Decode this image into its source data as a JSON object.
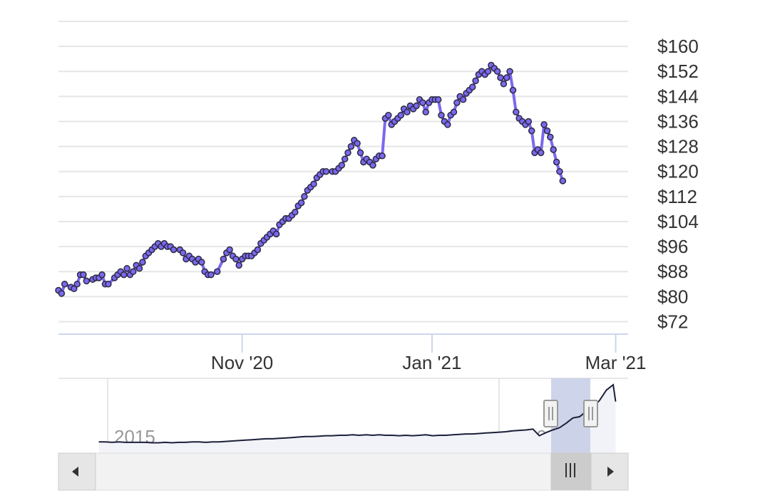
{
  "chart_data": {
    "type": "line",
    "title": "",
    "xlabel": "",
    "ylabel": "",
    "ylim": [
      68,
      168
    ],
    "y_ticks": [
      "$160",
      "$152",
      "$144",
      "$136",
      "$128",
      "$120",
      "$112",
      "$104",
      "$96",
      "$88",
      "$80",
      "$72"
    ],
    "y_tick_values": [
      160,
      152,
      144,
      136,
      128,
      120,
      112,
      104,
      96,
      88,
      80,
      72
    ],
    "x_ticks": [
      {
        "label": "Nov '20",
        "date": "2020-11-01"
      },
      {
        "label": "Jan '21",
        "date": "2021-01-01"
      },
      {
        "label": "Mar '21",
        "date": "2021-03-01"
      }
    ],
    "xlim": [
      "2020-09-03",
      "2021-03-05"
    ],
    "grid": true,
    "legend": "none",
    "series": [
      {
        "color": "#7b68ee",
        "marker_color": "#2a2a40",
        "points": [
          [
            "2020-09-03",
            82
          ],
          [
            "2020-09-04",
            81
          ],
          [
            "2020-09-05",
            84
          ],
          [
            "2020-09-07",
            83
          ],
          [
            "2020-09-08",
            82.5
          ],
          [
            "2020-09-09",
            84
          ],
          [
            "2020-09-10",
            87
          ],
          [
            "2020-09-11",
            87
          ],
          [
            "2020-09-12",
            85
          ],
          [
            "2020-09-14",
            85.5
          ],
          [
            "2020-09-15",
            86
          ],
          [
            "2020-09-16",
            86
          ],
          [
            "2020-09-17",
            87
          ],
          [
            "2020-09-18",
            84
          ],
          [
            "2020-09-19",
            84
          ],
          [
            "2020-09-21",
            86
          ],
          [
            "2020-09-22",
            87
          ],
          [
            "2020-09-23",
            88
          ],
          [
            "2020-09-24",
            87
          ],
          [
            "2020-09-25",
            89
          ],
          [
            "2020-09-26",
            87
          ],
          [
            "2020-09-27",
            88
          ],
          [
            "2020-09-28",
            90
          ],
          [
            "2020-09-29",
            89
          ],
          [
            "2020-09-30",
            91
          ],
          [
            "2020-10-01",
            93
          ],
          [
            "2020-10-02",
            94
          ],
          [
            "2020-10-03",
            95
          ],
          [
            "2020-10-04",
            96
          ],
          [
            "2020-10-05",
            97
          ],
          [
            "2020-10-06",
            96
          ],
          [
            "2020-10-07",
            97
          ],
          [
            "2020-10-08",
            96
          ],
          [
            "2020-10-09",
            96
          ],
          [
            "2020-10-10",
            95
          ],
          [
            "2020-10-12",
            95
          ],
          [
            "2020-10-13",
            94
          ],
          [
            "2020-10-14",
            92
          ],
          [
            "2020-10-15",
            93
          ],
          [
            "2020-10-16",
            92
          ],
          [
            "2020-10-17",
            91
          ],
          [
            "2020-10-18",
            92
          ],
          [
            "2020-10-19",
            91
          ],
          [
            "2020-10-20",
            88
          ],
          [
            "2020-10-21",
            87
          ],
          [
            "2020-10-22",
            87
          ],
          [
            "2020-10-24",
            88
          ],
          [
            "2020-10-26",
            92
          ],
          [
            "2020-10-27",
            94
          ],
          [
            "2020-10-28",
            95
          ],
          [
            "2020-10-29",
            93
          ],
          [
            "2020-10-30",
            92
          ],
          [
            "2020-10-31",
            90
          ],
          [
            "2020-11-01",
            92
          ],
          [
            "2020-11-02",
            93
          ],
          [
            "2020-11-03",
            93
          ],
          [
            "2020-11-04",
            93
          ],
          [
            "2020-11-05",
            94
          ],
          [
            "2020-11-06",
            95
          ],
          [
            "2020-11-07",
            97
          ],
          [
            "2020-11-08",
            98
          ],
          [
            "2020-11-09",
            99
          ],
          [
            "2020-11-10",
            100
          ],
          [
            "2020-11-11",
            101
          ],
          [
            "2020-11-12",
            100
          ],
          [
            "2020-11-13",
            103
          ],
          [
            "2020-11-14",
            104
          ],
          [
            "2020-11-15",
            105
          ],
          [
            "2020-11-16",
            105
          ],
          [
            "2020-11-17",
            106
          ],
          [
            "2020-11-18",
            107
          ],
          [
            "2020-11-19",
            109
          ],
          [
            "2020-11-20",
            110
          ],
          [
            "2020-11-21",
            112
          ],
          [
            "2020-11-22",
            114
          ],
          [
            "2020-11-23",
            115
          ],
          [
            "2020-11-24",
            116
          ],
          [
            "2020-11-25",
            118
          ],
          [
            "2020-11-26",
            119
          ],
          [
            "2020-11-27",
            120
          ],
          [
            "2020-11-28",
            120
          ],
          [
            "2020-11-30",
            120
          ],
          [
            "2020-12-01",
            120
          ],
          [
            "2020-12-02",
            121
          ],
          [
            "2020-12-03",
            122
          ],
          [
            "2020-12-04",
            124
          ],
          [
            "2020-12-05",
            126
          ],
          [
            "2020-12-06",
            128
          ],
          [
            "2020-12-07",
            130
          ],
          [
            "2020-12-08",
            129
          ],
          [
            "2020-12-09",
            126
          ],
          [
            "2020-12-10",
            123
          ],
          [
            "2020-12-11",
            124
          ],
          [
            "2020-12-12",
            123
          ],
          [
            "2020-12-13",
            122
          ],
          [
            "2020-12-14",
            124
          ],
          [
            "2020-12-15",
            125
          ],
          [
            "2020-12-16",
            125
          ],
          [
            "2020-12-17",
            137
          ],
          [
            "2020-12-18",
            138
          ],
          [
            "2020-12-19",
            135
          ],
          [
            "2020-12-20",
            136
          ],
          [
            "2020-12-21",
            137
          ],
          [
            "2020-12-22",
            138
          ],
          [
            "2020-12-23",
            140
          ],
          [
            "2020-12-24",
            139
          ],
          [
            "2020-12-25",
            141
          ],
          [
            "2020-12-26",
            140
          ],
          [
            "2020-12-27",
            141
          ],
          [
            "2020-12-28",
            143
          ],
          [
            "2020-12-29",
            142
          ],
          [
            "2020-12-30",
            139
          ],
          [
            "2020-12-31",
            142
          ],
          [
            "2021-01-01",
            143
          ],
          [
            "2021-01-02",
            143
          ],
          [
            "2021-01-03",
            143
          ],
          [
            "2021-01-04",
            138
          ],
          [
            "2021-01-05",
            136
          ],
          [
            "2021-01-06",
            135
          ],
          [
            "2021-01-07",
            138
          ],
          [
            "2021-01-08",
            139
          ],
          [
            "2021-01-09",
            142
          ],
          [
            "2021-01-10",
            144
          ],
          [
            "2021-01-11",
            143
          ],
          [
            "2021-01-12",
            145
          ],
          [
            "2021-01-13",
            146
          ],
          [
            "2021-01-14",
            147
          ],
          [
            "2021-01-15",
            149
          ],
          [
            "2021-01-16",
            151
          ],
          [
            "2021-01-17",
            152
          ],
          [
            "2021-01-18",
            151
          ],
          [
            "2021-01-19",
            152
          ],
          [
            "2021-01-20",
            154
          ],
          [
            "2021-01-21",
            153
          ],
          [
            "2021-01-22",
            152
          ],
          [
            "2021-01-23",
            150
          ],
          [
            "2021-01-24",
            148
          ],
          [
            "2021-01-25",
            150
          ],
          [
            "2021-01-26",
            152
          ],
          [
            "2021-01-27",
            146
          ],
          [
            "2021-01-28",
            139
          ],
          [
            "2021-01-29",
            137
          ],
          [
            "2021-01-30",
            136
          ],
          [
            "2021-01-31",
            135
          ],
          [
            "2021-02-01",
            136
          ],
          [
            "2021-02-02",
            133
          ],
          [
            "2021-02-03",
            126
          ],
          [
            "2021-02-04",
            127
          ],
          [
            "2021-02-05",
            126
          ],
          [
            "2021-02-06",
            135
          ],
          [
            "2021-02-07",
            133
          ],
          [
            "2021-02-08",
            131
          ],
          [
            "2021-02-09",
            127
          ],
          [
            "2021-02-10",
            123
          ],
          [
            "2021-02-11",
            120
          ],
          [
            "2021-02-12",
            117
          ]
        ]
      }
    ]
  },
  "navigator": {
    "labels": [
      "2015",
      "2020"
    ],
    "line_color": "#1b1f3a",
    "mask_color": "#c5cde6",
    "series": [
      [
        "2014-09-01",
        26
      ],
      [
        "2014-10-01",
        26
      ],
      [
        "2014-11-01",
        25
      ],
      [
        "2014-12-01",
        26
      ],
      [
        "2015-01-01",
        25
      ],
      [
        "2015-02-01",
        25
      ],
      [
        "2015-03-01",
        25
      ],
      [
        "2015-04-01",
        25
      ],
      [
        "2015-05-01",
        24
      ],
      [
        "2015-06-01",
        24
      ],
      [
        "2015-07-01",
        25
      ],
      [
        "2015-08-01",
        24
      ],
      [
        "2015-09-01",
        25
      ],
      [
        "2015-10-01",
        25
      ],
      [
        "2015-11-01",
        26
      ],
      [
        "2015-12-01",
        26
      ],
      [
        "2016-01-01",
        25
      ],
      [
        "2016-02-01",
        26
      ],
      [
        "2016-03-01",
        26
      ],
      [
        "2016-04-01",
        27
      ],
      [
        "2016-05-01",
        28
      ],
      [
        "2016-06-01",
        29
      ],
      [
        "2016-07-01",
        30
      ],
      [
        "2016-08-01",
        31
      ],
      [
        "2016-09-01",
        32
      ],
      [
        "2016-10-01",
        33
      ],
      [
        "2016-11-01",
        33
      ],
      [
        "2016-12-01",
        34
      ],
      [
        "2017-01-01",
        35
      ],
      [
        "2017-02-01",
        36
      ],
      [
        "2017-03-01",
        37
      ],
      [
        "2017-04-01",
        38
      ],
      [
        "2017-05-01",
        38
      ],
      [
        "2017-06-01",
        39
      ],
      [
        "2017-07-01",
        40
      ],
      [
        "2017-08-01",
        40
      ],
      [
        "2017-09-01",
        41
      ],
      [
        "2017-10-01",
        41
      ],
      [
        "2017-11-01",
        42
      ],
      [
        "2017-12-01",
        41
      ],
      [
        "2018-01-01",
        42
      ],
      [
        "2018-02-01",
        41
      ],
      [
        "2018-03-01",
        42
      ],
      [
        "2018-04-01",
        41
      ],
      [
        "2018-05-01",
        41
      ],
      [
        "2018-06-01",
        40
      ],
      [
        "2018-07-01",
        41
      ],
      [
        "2018-08-01",
        40
      ],
      [
        "2018-09-01",
        41
      ],
      [
        "2018-10-01",
        42
      ],
      [
        "2018-11-01",
        40
      ],
      [
        "2018-12-01",
        41
      ],
      [
        "2019-01-01",
        41
      ],
      [
        "2019-02-01",
        42
      ],
      [
        "2019-03-01",
        43
      ],
      [
        "2019-04-01",
        44
      ],
      [
        "2019-05-01",
        44
      ],
      [
        "2019-06-01",
        45
      ],
      [
        "2019-07-01",
        46
      ],
      [
        "2019-08-01",
        47
      ],
      [
        "2019-09-01",
        48
      ],
      [
        "2019-10-01",
        49
      ],
      [
        "2019-11-01",
        51
      ],
      [
        "2019-12-01",
        52
      ],
      [
        "2020-01-01",
        53
      ],
      [
        "2020-02-01",
        55
      ],
      [
        "2020-03-01",
        40
      ],
      [
        "2020-04-01",
        47
      ],
      [
        "2020-05-01",
        53
      ],
      [
        "2020-06-01",
        58
      ],
      [
        "2020-07-01",
        68
      ],
      [
        "2020-08-01",
        80
      ],
      [
        "2020-09-01",
        83
      ],
      [
        "2020-10-01",
        95
      ],
      [
        "2020-11-01",
        104
      ],
      [
        "2020-12-01",
        120
      ],
      [
        "2021-01-01",
        143
      ],
      [
        "2021-02-01",
        155
      ],
      [
        "2021-02-12",
        117
      ]
    ]
  }
}
